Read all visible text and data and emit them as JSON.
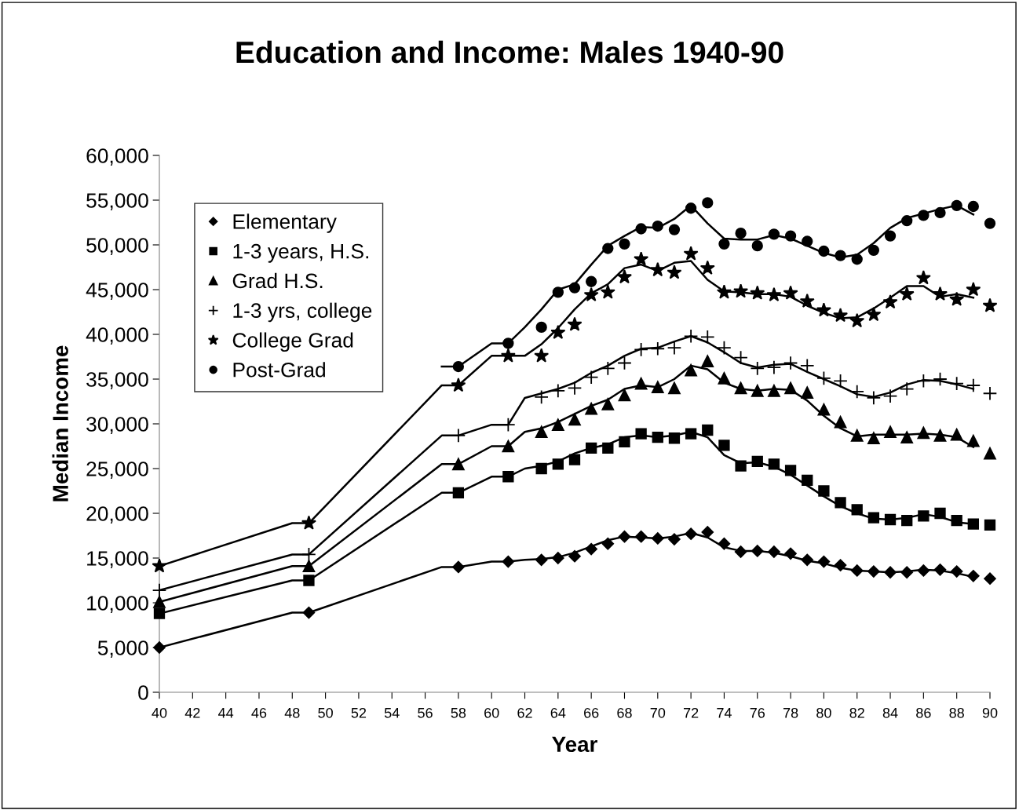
{
  "chart_data": {
    "type": "scatter",
    "title": "Education and Income: Males 1940-90",
    "xlabel": "Year",
    "ylabel": "Median Income",
    "xlim": [
      40,
      90
    ],
    "xticks": [
      40,
      42,
      44,
      46,
      48,
      50,
      52,
      54,
      56,
      58,
      60,
      62,
      64,
      66,
      68,
      70,
      72,
      74,
      76,
      78,
      80,
      82,
      84,
      86,
      88,
      90
    ],
    "ylim": [
      0,
      60000
    ],
    "yticks": [
      0,
      {
        "value": 5000,
        "label": "5,000"
      },
      {
        "value": 10000,
        "label": "10,000"
      },
      {
        "value": 15000,
        "label": "15,000"
      },
      {
        "value": 20000,
        "label": "20,000"
      },
      {
        "value": 25000,
        "label": "25,000"
      },
      {
        "value": 30000,
        "label": "30,000"
      },
      {
        "value": 35000,
        "label": "35,000"
      },
      {
        "value": 40000,
        "label": "40,000"
      },
      {
        "value": 45000,
        "label": "45,000"
      },
      {
        "value": 50000,
        "label": "50,000"
      },
      {
        "value": 55000,
        "label": "55,000"
      },
      {
        "value": 60000,
        "label": "60,000"
      }
    ],
    "grid": false,
    "legend": "top left",
    "series": [
      {
        "name": "Elementary",
        "color": "#000000",
        "marker": "diamond",
        "x": [
          40,
          49,
          58,
          61,
          63,
          64,
          65,
          66,
          67,
          68,
          69,
          70,
          71,
          72,
          73,
          74,
          75,
          76,
          77,
          78,
          79,
          80,
          81,
          82,
          83,
          84,
          85,
          86,
          87,
          88,
          89,
          90
        ],
        "values": [
          5000,
          8900,
          14000,
          14600,
          14800,
          15000,
          15200,
          16000,
          16600,
          17400,
          17400,
          17200,
          17100,
          17700,
          17900,
          16600,
          15700,
          15800,
          15700,
          15500,
          14800,
          14600,
          14200,
          13600,
          13500,
          13400,
          13400,
          13600,
          13700,
          13500,
          13000,
          12700
        ]
      },
      {
        "name": "1-3 years, H.S.",
        "color": "#000000",
        "marker": "square",
        "x": [
          40,
          49,
          58,
          61,
          63,
          64,
          65,
          66,
          67,
          68,
          69,
          70,
          71,
          72,
          73,
          74,
          75,
          76,
          77,
          78,
          79,
          80,
          81,
          82,
          83,
          84,
          85,
          86,
          87,
          88,
          89,
          90
        ],
        "values": [
          8800,
          12500,
          22300,
          24100,
          25000,
          25500,
          26000,
          27300,
          27300,
          28000,
          28900,
          28500,
          28400,
          28900,
          29300,
          27600,
          25300,
          25800,
          25500,
          24800,
          23700,
          22500,
          21200,
          20400,
          19500,
          19300,
          19200,
          19700,
          20000,
          19200,
          18800,
          18700
        ]
      },
      {
        "name": "Grad H.S.",
        "color": "#000000",
        "marker": "triangle",
        "x": [
          40,
          49,
          58,
          61,
          63,
          64,
          65,
          66,
          67,
          68,
          69,
          70,
          71,
          72,
          73,
          74,
          75,
          76,
          77,
          78,
          79,
          80,
          81,
          82,
          83,
          84,
          85,
          86,
          87,
          88,
          89,
          90
        ],
        "values": [
          10100,
          14100,
          25500,
          27500,
          29100,
          29900,
          30500,
          31700,
          32200,
          33200,
          34500,
          34100,
          34000,
          36000,
          37000,
          35100,
          34000,
          33700,
          33700,
          34000,
          33500,
          31600,
          30200,
          28700,
          28400,
          29100,
          28500,
          29000,
          28700,
          28800,
          28100,
          26700
        ]
      },
      {
        "name": "1-3 yrs, college",
        "color": "#000000",
        "marker": "cross",
        "x": [
          40,
          49,
          58,
          61,
          63,
          64,
          65,
          66,
          67,
          68,
          69,
          70,
          71,
          72,
          73,
          74,
          75,
          76,
          77,
          78,
          79,
          80,
          81,
          82,
          83,
          84,
          85,
          86,
          87,
          88,
          89,
          90
        ],
        "values": [
          11400,
          15400,
          28700,
          29900,
          33000,
          33700,
          34000,
          35200,
          36200,
          36800,
          38300,
          38400,
          38500,
          39800,
          39700,
          38500,
          37400,
          36200,
          36300,
          36800,
          36500,
          35100,
          34800,
          33600,
          32900,
          33100,
          33900,
          34800,
          35000,
          34500,
          34300,
          33400
        ]
      },
      {
        "name": "College Grad",
        "color": "#000000",
        "marker": "star",
        "x": [
          40,
          49,
          58,
          61,
          63,
          64,
          65,
          66,
          67,
          68,
          69,
          70,
          71,
          72,
          73,
          74,
          75,
          76,
          77,
          78,
          79,
          80,
          81,
          82,
          83,
          84,
          85,
          86,
          87,
          88,
          89,
          90
        ],
        "values": [
          14100,
          18900,
          34300,
          37600,
          37600,
          40200,
          41100,
          44400,
          44700,
          46400,
          48400,
          47200,
          46900,
          49000,
          47400,
          44700,
          44800,
          44600,
          44400,
          44600,
          43700,
          42700,
          42100,
          41500,
          42200,
          43600,
          44500,
          46300,
          44500,
          43900,
          45000,
          43200
        ]
      },
      {
        "name": "Post-Grad",
        "color": "#000000",
        "marker": "circle",
        "x": [
          58,
          61,
          63,
          64,
          65,
          66,
          67,
          68,
          69,
          70,
          71,
          72,
          73,
          74,
          75,
          76,
          77,
          78,
          79,
          80,
          81,
          82,
          83,
          84,
          85,
          86,
          87,
          88,
          89,
          90
        ],
        "values": [
          36400,
          39000,
          40800,
          44700,
          45200,
          45900,
          49600,
          50100,
          51800,
          52100,
          51700,
          54100,
          54700,
          50100,
          51300,
          49900,
          51200,
          51000,
          50400,
          49300,
          48800,
          48400,
          49400,
          51000,
          52700,
          53300,
          53600,
          54400,
          54300,
          52400
        ]
      },
      {
        "type": "line",
        "color": "#000000",
        "x": [
          40,
          48,
          49,
          57,
          58,
          60,
          61,
          62,
          63,
          64,
          65,
          66,
          67,
          68,
          69,
          70,
          71,
          72,
          73,
          74,
          75,
          76,
          77,
          78,
          79,
          80,
          81,
          82,
          83,
          84,
          85,
          86,
          87,
          88,
          89
        ],
        "values": [
          5000,
          8900,
          8900,
          14000,
          14000,
          14600,
          14600,
          14800,
          14900,
          15100,
          15600,
          16300,
          17000,
          17400,
          17300,
          17200,
          17400,
          17800,
          17300,
          16200,
          15800,
          15800,
          15600,
          15200,
          14700,
          14400,
          13900,
          13600,
          13500,
          13400,
          13500,
          13700,
          13600,
          13300,
          12900
        ]
      },
      {
        "type": "line",
        "color": "#000000",
        "x": [
          40,
          48,
          49,
          57,
          58,
          60,
          61,
          62,
          63,
          64,
          65,
          66,
          67,
          68,
          69,
          70,
          71,
          72,
          73,
          74,
          75,
          76,
          77,
          78,
          79,
          80,
          81,
          82,
          83,
          84,
          85,
          86,
          87,
          88,
          89
        ],
        "values": [
          8800,
          12500,
          12500,
          22300,
          22300,
          24100,
          24100,
          25000,
          25300,
          25800,
          26700,
          27300,
          27700,
          28500,
          28700,
          28500,
          28700,
          29100,
          28500,
          26500,
          25600,
          25700,
          25200,
          24300,
          23100,
          21900,
          20800,
          20000,
          19400,
          19300,
          19500,
          19900,
          19600,
          19000,
          18800
        ]
      },
      {
        "type": "line",
        "color": "#000000",
        "x": [
          40,
          48,
          49,
          57,
          58,
          60,
          61,
          62,
          63,
          64,
          65,
          66,
          67,
          68,
          69,
          70,
          71,
          72,
          73,
          74,
          75,
          76,
          77,
          78,
          79,
          80,
          81,
          82,
          83,
          84,
          85,
          86,
          87,
          88,
          89
        ],
        "values": [
          10100,
          14100,
          14100,
          25500,
          25500,
          27500,
          27500,
          29100,
          29500,
          30200,
          31100,
          32000,
          32700,
          33900,
          34300,
          34100,
          35000,
          36500,
          36100,
          34600,
          33900,
          33700,
          33900,
          33800,
          32600,
          30900,
          29500,
          28600,
          28800,
          28800,
          28800,
          28900,
          28800,
          28500,
          27400
        ]
      },
      {
        "type": "line",
        "color": "#000000",
        "x": [
          40,
          48,
          49,
          57,
          58,
          60,
          61,
          62,
          63,
          64,
          65,
          66,
          67,
          68,
          69,
          70,
          71,
          72,
          73,
          74,
          75,
          76,
          77,
          78,
          79,
          80,
          81,
          82,
          83,
          84,
          85,
          86,
          87,
          88,
          89
        ],
        "values": [
          11400,
          15400,
          15400,
          28700,
          28700,
          29900,
          29900,
          32900,
          33400,
          33900,
          34600,
          35700,
          36500,
          37600,
          38400,
          38500,
          39200,
          39800,
          39100,
          38000,
          36800,
          36300,
          36600,
          36700,
          35800,
          35000,
          34200,
          33300,
          33000,
          33500,
          34400,
          34900,
          34800,
          34400,
          33900
        ]
      },
      {
        "type": "line",
        "color": "#000000",
        "x": [
          40,
          48,
          49,
          57,
          58,
          60,
          61,
          62,
          63,
          64,
          65,
          66,
          67,
          68,
          69,
          70,
          71,
          72,
          73,
          74,
          75,
          76,
          77,
          78,
          79,
          80,
          81,
          82,
          83,
          84,
          85,
          86,
          87,
          88,
          89
        ],
        "values": [
          14100,
          18900,
          18900,
          34300,
          34300,
          37600,
          37600,
          37600,
          38900,
          40700,
          42800,
          44600,
          45600,
          47400,
          47800,
          47100,
          48000,
          48200,
          46100,
          44800,
          44700,
          44500,
          44500,
          44200,
          43200,
          42400,
          41800,
          41900,
          42900,
          44100,
          45400,
          45400,
          44200,
          44500,
          44100
        ]
      },
      {
        "type": "line",
        "color": "#000000",
        "x": [
          57,
          58,
          60,
          61,
          62,
          63,
          64,
          65,
          66,
          67,
          68,
          69,
          70,
          71,
          72,
          73,
          74,
          75,
          76,
          77,
          78,
          79,
          80,
          81,
          82,
          83,
          84,
          85,
          86,
          87,
          88,
          89
        ],
        "values": [
          36400,
          36400,
          39000,
          39000,
          40800,
          42800,
          45000,
          45600,
          47800,
          49900,
          51000,
          52000,
          51900,
          52900,
          54400,
          52400,
          50700,
          50600,
          50600,
          51100,
          50700,
          49900,
          49100,
          48600,
          48900,
          50200,
          51900,
          53000,
          53500,
          54000,
          54400,
          53400
        ]
      }
    ]
  }
}
